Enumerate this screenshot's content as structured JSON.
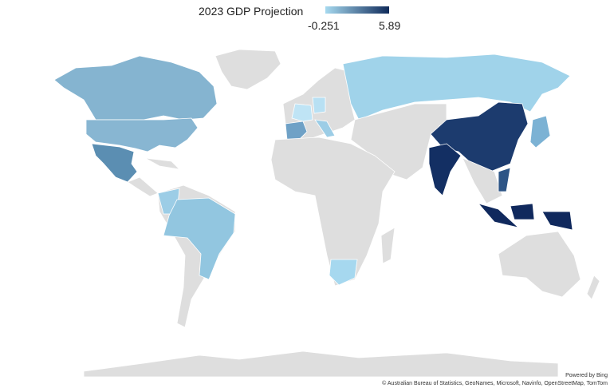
{
  "title": "2023 GDP Projection",
  "legend": {
    "min": -0.251,
    "max": 5.89,
    "min_color": "#a6d9ef",
    "max_color": "#0f2a5a"
  },
  "attribution": {
    "powered": "Powered by Bing",
    "credits": "© Australian Bureau of Statistics, GeoNames, Microsoft, Navinfo, OpenStreetMap, TomTom"
  }
}
